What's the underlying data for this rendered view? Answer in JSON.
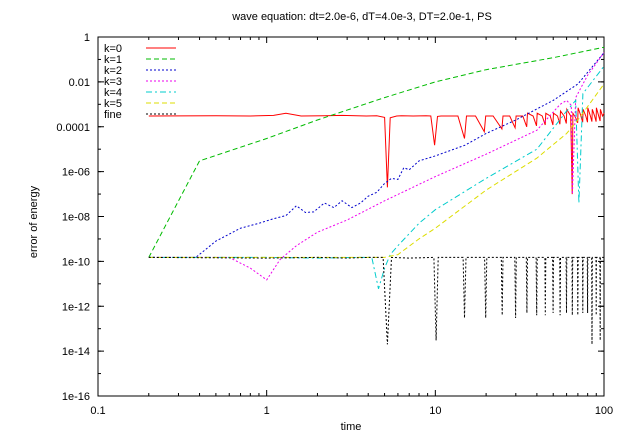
{
  "chart_data": {
    "type": "line",
    "title": "wave equation: dt=2.0e-6, dT=4.0e-3, DT=2.0e-1, PS",
    "xlabel": "time",
    "ylabel": "error of energy",
    "x_scale": "log",
    "y_scale": "log",
    "xlim": [
      0.1,
      100
    ],
    "ylim": [
      1e-16,
      1
    ],
    "x_ticks": [
      {
        "value": 0.1,
        "label": "0.1"
      },
      {
        "value": 1,
        "label": "1"
      },
      {
        "value": 10,
        "label": "10"
      },
      {
        "value": 100,
        "label": "100"
      }
    ],
    "y_ticks": [
      {
        "value": 1,
        "label": "1"
      },
      {
        "value": 0.01,
        "label": "0.01"
      },
      {
        "value": 0.0001,
        "label": "0.0001"
      },
      {
        "value": 1e-06,
        "label": "1e-06"
      },
      {
        "value": 1e-08,
        "label": "1e-08"
      },
      {
        "value": 1e-10,
        "label": "1e-10"
      },
      {
        "value": 1e-12,
        "label": "1e-12"
      },
      {
        "value": 1e-14,
        "label": "1e-14"
      },
      {
        "value": 1e-16,
        "label": "1e-16"
      }
    ],
    "legend_position": "top-left",
    "series": [
      {
        "name": "k=0",
        "color": "#ff0000",
        "dash": "solid",
        "points": [
          [
            0.2,
            0.0003
          ],
          [
            0.5,
            0.00031
          ],
          [
            0.8,
            0.0003
          ],
          [
            1.1,
            0.00032
          ],
          [
            1.3,
            0.0004
          ],
          [
            1.6,
            0.0003
          ],
          [
            2.2,
            0.00031
          ],
          [
            2.8,
            0.00032
          ],
          [
            3.4,
            0.00031
          ],
          [
            3.9,
            0.0003
          ],
          [
            4.5,
            0.00031
          ],
          [
            5.0,
            0.00026
          ],
          [
            5.2,
            2e-07
          ],
          [
            5.4,
            0.00025
          ],
          [
            5.9,
            0.0003
          ],
          [
            6.3,
            0.00031
          ],
          [
            7.4,
            0.0003
          ],
          [
            8.8,
            0.00031
          ],
          [
            9.4,
            0.0003
          ],
          [
            9.9,
            1.5e-05
          ],
          [
            10.3,
            0.00029
          ],
          [
            10.8,
            0.0003
          ],
          [
            12.0,
            0.0003
          ],
          [
            13.6,
            0.0003
          ],
          [
            14.9,
            3e-05
          ],
          [
            15.3,
            0.0003
          ],
          [
            17.3,
            0.0003
          ],
          [
            19.5,
            6e-05
          ],
          [
            19.9,
            0.0003
          ],
          [
            22.0,
            0.0003
          ],
          [
            24.8,
            8e-05
          ],
          [
            25.2,
            0.0003
          ],
          [
            27.6,
            0.0003
          ],
          [
            29.7,
            9e-05
          ],
          [
            30.1,
            0.0003
          ],
          [
            33.0,
            0.0003
          ],
          [
            34.8,
            0.0001
          ],
          [
            35.2,
            0.0004
          ],
          [
            38.0,
            0.0003
          ],
          [
            39.8,
            0.00011
          ],
          [
            40.2,
            0.0004
          ],
          [
            43.0,
            0.0003
          ],
          [
            44.8,
            0.00012
          ],
          [
            45.2,
            0.0004
          ],
          [
            48.0,
            0.0003
          ],
          [
            49.8,
            0.00012
          ],
          [
            50.2,
            0.0004
          ],
          [
            53.0,
            0.0003
          ],
          [
            54.8,
            0.00013
          ],
          [
            55.2,
            0.0005
          ],
          [
            58.0,
            0.0003
          ],
          [
            59.8,
            0.00014
          ],
          [
            60.2,
            0.0006
          ],
          [
            63.5,
            0.0003
          ],
          [
            64.8,
            1e-07
          ],
          [
            65.4,
            0.0004
          ],
          [
            68.0,
            0.00025
          ],
          [
            69.8,
            0.00015
          ],
          [
            70.2,
            0.0007
          ],
          [
            73.0,
            0.0003
          ],
          [
            74.8,
            0.00016
          ],
          [
            75.2,
            0.0006
          ],
          [
            78.0,
            0.0003
          ],
          [
            79.8,
            0.00016
          ],
          [
            80.2,
            0.0007
          ],
          [
            83.0,
            0.0003
          ],
          [
            84.8,
            0.00017
          ],
          [
            85.2,
            0.0006
          ],
          [
            88.0,
            0.0003
          ],
          [
            89.8,
            0.00017
          ],
          [
            90.2,
            0.0007
          ],
          [
            93.0,
            0.0003
          ],
          [
            94.8,
            0.00018
          ],
          [
            95.2,
            0.0006
          ],
          [
            98.0,
            0.0003
          ],
          [
            100,
            0.0004
          ]
        ]
      },
      {
        "name": "k=1",
        "color": "#00bb00",
        "dash": "dashed",
        "points": [
          [
            0.2,
            1.5e-10
          ],
          [
            0.4,
            3e-06
          ],
          [
            1.0,
            3e-05
          ],
          [
            2.0,
            0.0002
          ],
          [
            5.0,
            0.002
          ],
          [
            10.0,
            0.01
          ],
          [
            20.0,
            0.035
          ],
          [
            50.0,
            0.12
          ],
          [
            100,
            0.35
          ]
        ]
      },
      {
        "name": "k=2",
        "color": "#0000cc",
        "dash": "dotted",
        "points": [
          [
            0.2,
            1.5e-10
          ],
          [
            0.38,
            1.5e-10
          ],
          [
            0.5,
            8e-10
          ],
          [
            0.7,
            3e-09
          ],
          [
            0.9,
            5e-09
          ],
          [
            1.1,
            8e-09
          ],
          [
            1.3,
            1.1e-08
          ],
          [
            1.5,
            3e-08
          ],
          [
            1.7,
            1.5e-08
          ],
          [
            1.9,
            1.6e-08
          ],
          [
            2.2,
            4e-08
          ],
          [
            2.5,
            2.5e-08
          ],
          [
            2.8,
            5e-08
          ],
          [
            3.2,
            2.5e-08
          ],
          [
            3.6,
            4e-08
          ],
          [
            4.0,
            8e-08
          ],
          [
            4.5,
            1.2e-07
          ],
          [
            5.0,
            3e-07
          ],
          [
            5.5,
            5e-07
          ],
          [
            6.0,
            4.5e-07
          ],
          [
            6.5,
            1.5e-06
          ],
          [
            7.0,
            1.2e-06
          ],
          [
            8.0,
            3e-06
          ],
          [
            10.0,
            5e-06
          ],
          [
            15.0,
            1.5e-05
          ],
          [
            20.0,
            5e-05
          ],
          [
            30.0,
            0.0002
          ],
          [
            50.0,
            0.0015
          ],
          [
            70.0,
            0.008
          ],
          [
            100,
            0.2
          ]
        ]
      },
      {
        "name": "k=3",
        "color": "#ee00ee",
        "dash": "dotted",
        "points": [
          [
            0.2,
            1.5e-10
          ],
          [
            0.6,
            1.5e-10
          ],
          [
            0.8,
            5e-11
          ],
          [
            1.0,
            1.5e-11
          ],
          [
            1.2,
            1.2e-10
          ],
          [
            1.5,
            5e-10
          ],
          [
            2.0,
            2e-09
          ],
          [
            3.0,
            7e-09
          ],
          [
            5.0,
            5e-08
          ],
          [
            10.0,
            6e-07
          ],
          [
            20.0,
            6e-06
          ],
          [
            40.0,
            7e-05
          ],
          [
            55.0,
            0.001
          ],
          [
            60.0,
            0.0015
          ],
          [
            64.0,
            0.0009
          ],
          [
            65.0,
            1e-07
          ],
          [
            68.0,
            0.002
          ],
          [
            80.0,
            0.02
          ],
          [
            100,
            0.2
          ]
        ]
      },
      {
        "name": "k=4",
        "color": "#00cccc",
        "dash": "dash-dot",
        "points": [
          [
            0.2,
            1.5e-10
          ],
          [
            1.0,
            1.5e-10
          ],
          [
            2.0,
            1.4e-10
          ],
          [
            3.5,
            1.5e-10
          ],
          [
            4.2,
            1.5e-10
          ],
          [
            4.6,
            6e-12
          ],
          [
            5.0,
            5e-11
          ],
          [
            5.4,
            2e-10
          ],
          [
            6.0,
            5e-10
          ],
          [
            8.0,
            5e-09
          ],
          [
            10.0,
            2e-08
          ],
          [
            20.0,
            5e-07
          ],
          [
            40.0,
            1e-05
          ],
          [
            60.0,
            0.0005
          ],
          [
            68.0,
            0.0015
          ],
          [
            71.0,
            4e-08
          ],
          [
            75.0,
            0.003
          ],
          [
            100,
            0.05
          ]
        ]
      },
      {
        "name": "k=5",
        "color": "#dddd00",
        "dash": "dashed",
        "points": [
          [
            0.2,
            1.5e-10
          ],
          [
            5.0,
            1.5e-10
          ],
          [
            6.0,
            2e-10
          ],
          [
            8.0,
            1e-09
          ],
          [
            10.0,
            3e-09
          ],
          [
            20.0,
            1.5e-07
          ],
          [
            40.0,
            4e-06
          ],
          [
            60.0,
            5e-05
          ],
          [
            70.0,
            0.0002
          ],
          [
            100,
            0.008
          ]
        ]
      },
      {
        "name": "fine",
        "color": "#000000",
        "dash": "dotted",
        "points": [
          [
            0.2,
            1.5e-10
          ],
          [
            1.0,
            1.4e-10
          ],
          [
            2.0,
            1.5e-10
          ],
          [
            3.0,
            1.4e-10
          ],
          [
            4.0,
            1.5e-10
          ],
          [
            4.9,
            1.5e-10
          ],
          [
            5.2,
            2e-14
          ],
          [
            5.5,
            1.5e-10
          ],
          [
            7.0,
            1.4e-10
          ],
          [
            9.8,
            1.5e-10
          ],
          [
            10.1,
            3e-14
          ],
          [
            10.4,
            1.5e-10
          ],
          [
            14.6,
            1.5e-10
          ],
          [
            14.9,
            3e-13
          ],
          [
            15.2,
            1.5e-10
          ],
          [
            19.6,
            1.5e-10
          ],
          [
            19.9,
            3e-13
          ],
          [
            20.2,
            1.5e-10
          ],
          [
            24.6,
            1.5e-10
          ],
          [
            24.9,
            4e-13
          ],
          [
            25.2,
            1.5e-10
          ],
          [
            29.6,
            1.5e-10
          ],
          [
            29.9,
            3e-13
          ],
          [
            30.2,
            1.5e-10
          ],
          [
            34.6,
            1.5e-10
          ],
          [
            34.9,
            5e-13
          ],
          [
            35.2,
            1.5e-10
          ],
          [
            39.6,
            1.5e-10
          ],
          [
            39.9,
            4e-13
          ],
          [
            40.2,
            1.5e-10
          ],
          [
            44.6,
            1.5e-10
          ],
          [
            44.9,
            4e-13
          ],
          [
            45.2,
            1.5e-10
          ],
          [
            49.6,
            1.5e-10
          ],
          [
            49.9,
            5e-13
          ],
          [
            50.2,
            1.5e-10
          ],
          [
            54.6,
            1.5e-10
          ],
          [
            54.9,
            4e-13
          ],
          [
            55.2,
            1.5e-10
          ],
          [
            59.6,
            1.5e-10
          ],
          [
            59.9,
            5e-13
          ],
          [
            60.2,
            1.5e-10
          ],
          [
            64.6,
            1.5e-10
          ],
          [
            64.9,
            4e-13
          ],
          [
            65.2,
            1.5e-10
          ],
          [
            69.6,
            1.5e-10
          ],
          [
            69.9,
            4e-13
          ],
          [
            70.2,
            1.5e-10
          ],
          [
            74.6,
            1.5e-10
          ],
          [
            74.9,
            5e-13
          ],
          [
            75.2,
            1.5e-10
          ],
          [
            79.6,
            1.5e-10
          ],
          [
            79.9,
            5e-13
          ],
          [
            80.2,
            1.5e-10
          ],
          [
            84.6,
            1.5e-10
          ],
          [
            84.9,
            2e-14
          ],
          [
            85.2,
            1.5e-10
          ],
          [
            89.6,
            1.5e-10
          ],
          [
            89.9,
            4e-13
          ],
          [
            90.2,
            1.5e-10
          ],
          [
            94.6,
            1.5e-10
          ],
          [
            94.9,
            3e-14
          ],
          [
            95.2,
            1.5e-10
          ],
          [
            99.6,
            1.5e-10
          ],
          [
            100,
            1.5e-10
          ]
        ]
      }
    ]
  }
}
